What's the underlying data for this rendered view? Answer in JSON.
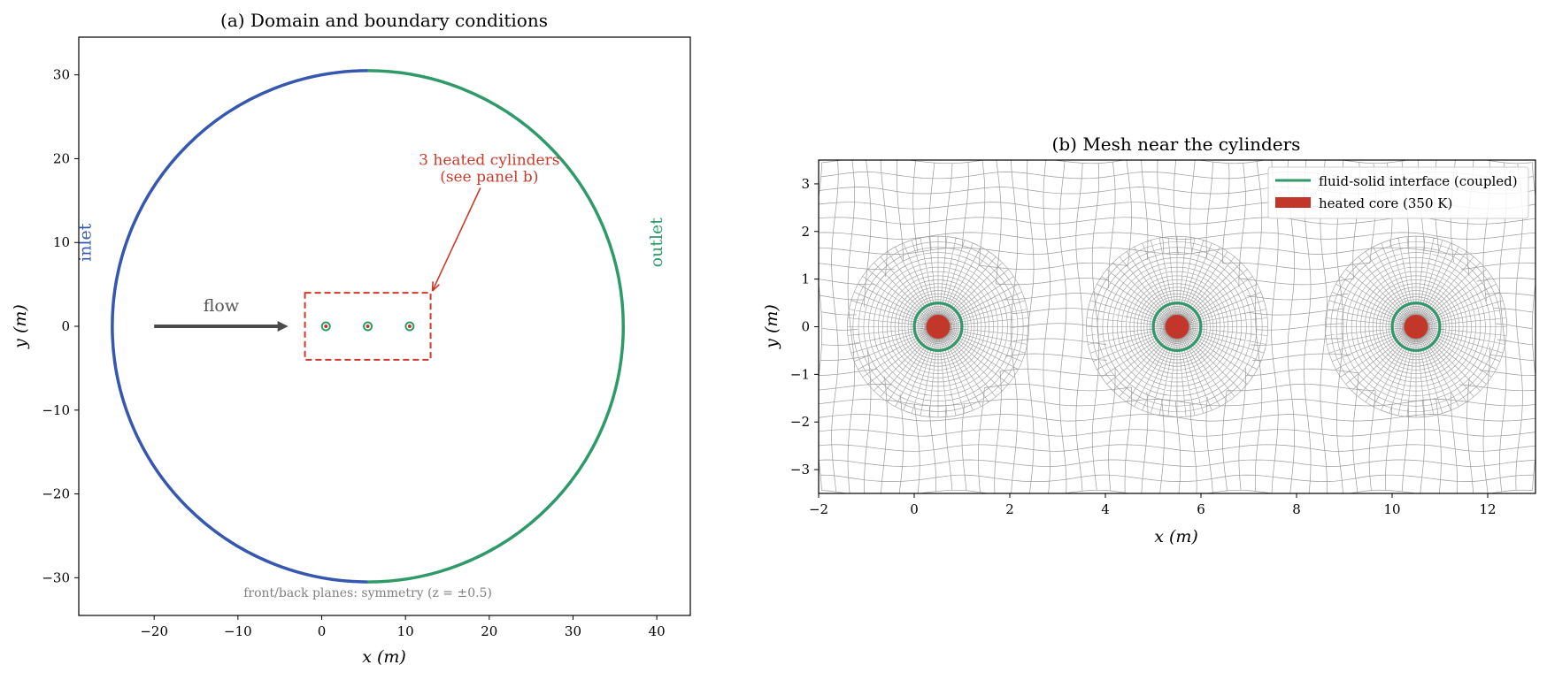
{
  "colors": {
    "inlet": "#3557b0",
    "outlet": "#2e9a6a",
    "annotation": "#cc3a2b",
    "core": "#c2372a",
    "flow_arrow": "#4a4a4a",
    "mesh": "#9a9a9a",
    "axes": "#000000",
    "note": "#808080"
  },
  "panel_a": {
    "title": "(a) Domain and boundary conditions",
    "xlabel": "x (m)",
    "ylabel": "y (m)",
    "xlim": [
      -29,
      44
    ],
    "ylim": [
      -34.5,
      34.5
    ],
    "xticks": [
      -20,
      -10,
      0,
      10,
      20,
      30,
      40
    ],
    "xtick_labels": [
      "−20",
      "−10",
      "0",
      "10",
      "20",
      "30",
      "40"
    ],
    "yticks": [
      -30,
      -20,
      -10,
      0,
      10,
      20,
      30
    ],
    "ytick_labels": [
      "−30",
      "−20",
      "−10",
      "0",
      "10",
      "20",
      "30"
    ],
    "domain_circle": {
      "center": [
        5.5,
        0
      ],
      "radius": 30.5
    },
    "inlet_label": "inlet",
    "outlet_label": "outlet",
    "flow_label": "flow",
    "flow_arrow": {
      "from": [
        -20,
        0
      ],
      "to": [
        -4,
        0
      ]
    },
    "highlight_box": {
      "x": [
        -2,
        13
      ],
      "y": [
        -4,
        4
      ]
    },
    "cylinders_x": [
      0.5,
      5.5,
      10.5
    ],
    "annotation_line1": "3 heated cylinders",
    "annotation_line2": "(see panel b)",
    "annotation_text_at": [
      20,
      18
    ],
    "annotation_arrow_to": [
      13,
      4
    ],
    "note": "front/back planes: symmetry (z = ±0.5)"
  },
  "panel_b": {
    "title": "(b) Mesh near the cylinders",
    "xlabel": "x (m)",
    "ylabel": "y (m)",
    "xlim": [
      -2,
      13
    ],
    "ylim": [
      -3.5,
      3.5
    ],
    "xticks": [
      -2,
      0,
      2,
      4,
      6,
      8,
      10,
      12
    ],
    "xtick_labels": [
      "−2",
      "0",
      "2",
      "4",
      "6",
      "8",
      "10",
      "12"
    ],
    "yticks": [
      -3,
      -2,
      -1,
      0,
      1,
      2,
      3
    ],
    "ytick_labels": [
      "−3",
      "−2",
      "−1",
      "0",
      "1",
      "2",
      "3"
    ],
    "cylinder_centers_x": [
      0.5,
      5.5,
      10.5
    ],
    "interface_radius": 0.5,
    "core_radius": 0.25,
    "legend": [
      {
        "label": "fluid-solid interface (coupled)",
        "kind": "line"
      },
      {
        "label": "heated core (350 K)",
        "kind": "patch"
      }
    ]
  }
}
